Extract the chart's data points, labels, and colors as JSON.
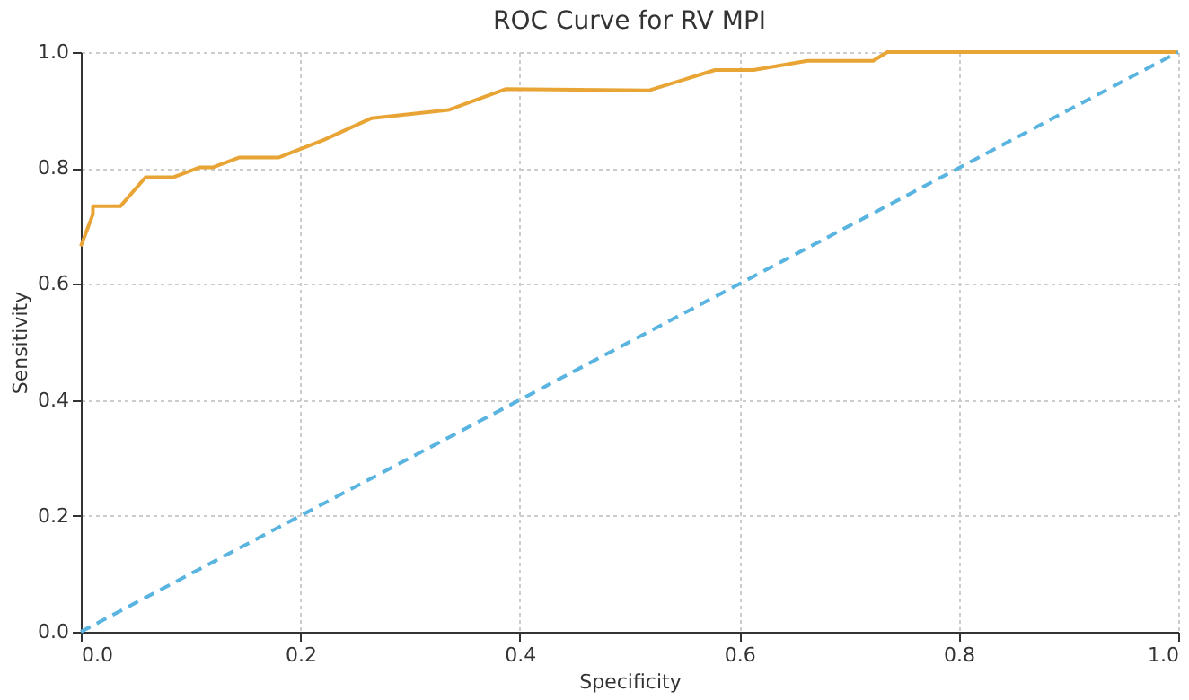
{
  "chart_data": {
    "type": "line",
    "title": "ROC Curve for RV MPI",
    "xlabel": "Specificity",
    "ylabel": "Sensitivity",
    "series": [
      {
        "color": "#e8a535",
        "line_style": "solid",
        "x": [
          0,
          0.011,
          0.011,
          0.036,
          0.059,
          0.084,
          0.108,
          0.12,
          0.144,
          0.18,
          0.221,
          0.265,
          0.335,
          0.387,
          0.518,
          0.578,
          0.613,
          0.662,
          0.722,
          0.735,
          1
        ],
        "values": [
          0.665,
          0.72,
          0.734,
          0.734,
          0.784,
          0.784,
          0.801,
          0.801,
          0.818,
          0.818,
          0.848,
          0.886,
          0.9,
          0.936,
          0.934,
          0.969,
          0.969,
          0.985,
          0.985,
          1,
          1
        ]
      },
      {
        "color": "#5ab4e0",
        "line_style": "dashed",
        "x": [
          0,
          1
        ],
        "values": [
          0,
          1
        ]
      }
    ],
    "xlim": [
      0,
      1
    ],
    "ylim": [
      0,
      1
    ],
    "xticks": [
      {
        "value": 0,
        "label": "0.0"
      },
      0.2,
      0.4,
      0.6,
      0.8,
      {
        "value": 1,
        "label": "1.0"
      }
    ],
    "yticks": [
      {
        "value": 0,
        "label": "0.0"
      },
      0.2,
      0.4,
      0.6,
      0.8,
      {
        "value": 1,
        "label": "1.0"
      }
    ],
    "grid": true,
    "marker": "none"
  }
}
